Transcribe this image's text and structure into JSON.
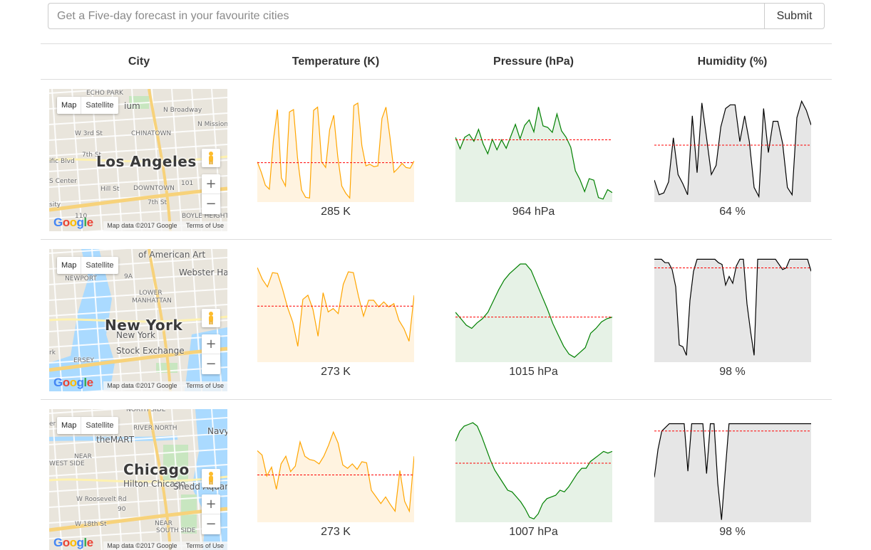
{
  "search": {
    "placeholder": "Get a Five-day forecast in your favourite cities",
    "value": ""
  },
  "submit_label": "Submit",
  "table": {
    "headers": {
      "city": "City",
      "temperature": "Temperature (K)",
      "pressure": "Pressure (hPa)",
      "humidity": "Humidity (%)"
    }
  },
  "map_controls": {
    "map_label": "Map",
    "satellite_label": "Satellite",
    "zoom_in": "+",
    "zoom_out": "−",
    "attribution": "Map data ©2017 Google",
    "terms": "Terms of Use",
    "logo_letters": [
      "G",
      "o",
      "o",
      "g",
      "l",
      "e"
    ]
  },
  "colors": {
    "temperature": {
      "line": "#ffa500",
      "fill": "#fff3e0"
    },
    "pressure": {
      "line": "#008000",
      "fill": "#e6f2e6"
    },
    "humidity": {
      "line": "#000000",
      "fill": "#e6e6e6"
    },
    "mean_line": "#ff0000"
  },
  "icons": {
    "pegman": "pegman-icon",
    "zoom_in": "zoom-in-icon",
    "zoom_out": "zoom-out-icon"
  },
  "rows": [
    {
      "city": "Los Angeles",
      "map_labels": [
        "ECHO PARK",
        "N Broadway",
        "W 3rd St",
        "CHINATOWN",
        "7th St",
        "ific Blvd",
        "S Center",
        "DOWNTOWN",
        "Hill St",
        "7th St",
        "sity",
        "BOYLE HEIGHTS",
        "ium",
        "110",
        "101",
        "N Mission"
      ],
      "temperature": {
        "summary": "285 K",
        "values": [
          283.5,
          282.2,
          280.6,
          280.1,
          286.2,
          290.0,
          281.5,
          280.5,
          289.7,
          290.0,
          284.0,
          280.0,
          279.1,
          279.0,
          289.9,
          290.3,
          283.5,
          282.8,
          287.5,
          289.3,
          284.2,
          280.5,
          279.6,
          279.0,
          290.5,
          290.8,
          285.5,
          283.0,
          283.2,
          282.9,
          283.0,
          288.9,
          290.3,
          286.5,
          282.2,
          282.7,
          283.3,
          282.8,
          282.7,
          283.6
        ],
        "mean": 283.4,
        "range": [
          278.5,
          291.5
        ]
      },
      "pressure": {
        "summary": "964 hPa",
        "values": [
          966.5,
          964.2,
          966.5,
          967.1,
          965.7,
          968.1,
          965.2,
          963.2,
          966.1,
          964.0,
          966.0,
          964.3,
          966.7,
          969.1,
          966.2,
          968.9,
          970.0,
          967.6,
          972.6,
          968.8,
          968.5,
          967.5,
          971.2,
          967.8,
          966.5,
          964.5,
          959.8,
          958.0,
          955.6,
          958.2,
          957.9,
          954.4,
          954.1,
          956.0,
          955.4
        ],
        "mean": 966.0,
        "range": [
          953.5,
          974.5
        ]
      },
      "humidity": {
        "summary": "64 %",
        "values": [
          57,
          49,
          50,
          56,
          80,
          60,
          55,
          49,
          92,
          61,
          99,
          80,
          60,
          65,
          86,
          96,
          98,
          98,
          78,
          92,
          78,
          53,
          48,
          96,
          72,
          89,
          89,
          77,
          53,
          49,
          91,
          100,
          95,
          87
        ],
        "mean": 76,
        "range": [
          45,
          102
        ]
      }
    },
    {
      "city": "New York",
      "map_labels": [
        "of American Art",
        "Webster Ha",
        "NEWPORT",
        "9A",
        "LOWER",
        "MANHATTAN",
        "ERSEY",
        "New York",
        "Stock Exchange",
        "rk"
      ],
      "temperature": {
        "summary": "273 K",
        "values": [
          276.8,
          275.4,
          274.5,
          276.2,
          276.1,
          274.2,
          272.0,
          270.3,
          267.4,
          273.0,
          273.5,
          271.8,
          268.6,
          273.8,
          271.5,
          271.9,
          271.3,
          274.8,
          276.3,
          276.2,
          273.4,
          271.0,
          272.9,
          272.9,
          272.1,
          272.7,
          272.1,
          272.5,
          270.5,
          269.5,
          268.0,
          273.5
        ],
        "mean": 272.2,
        "range": [
          265.5,
          278.0
        ]
      },
      "pressure": {
        "summary": "1015 hPa",
        "values": [
          1016.5,
          1014.5,
          1012.5,
          1011.5,
          1013.2,
          1014.5,
          1016.5,
          1020.0,
          1023.5,
          1026.5,
          1028.5,
          1030.0,
          1031.5,
          1031.5,
          1029.5,
          1025.5,
          1021.5,
          1017.5,
          1013.0,
          1009.5,
          1006.0,
          1003.5,
          1002.5,
          1004.0,
          1005.5,
          1010.0,
          1011.5,
          1013.5,
          1014.5,
          1015.0
        ],
        "mean": 1015.0,
        "range": [
          1001.0,
          1033.5
        ]
      },
      "humidity": {
        "summary": "98 %",
        "values": [
          100,
          100,
          100,
          98,
          98,
          94,
          84,
          50,
          49,
          44,
          76,
          93,
          100,
          100,
          100,
          100,
          100,
          100,
          98,
          97,
          85,
          90,
          86,
          96,
          100,
          100,
          74,
          58,
          44,
          100,
          100,
          100,
          100,
          100,
          100,
          97,
          94,
          95,
          100,
          100,
          100,
          100,
          100,
          100,
          93
        ],
        "mean": 95,
        "range": [
          40,
          101
        ]
      }
    },
    {
      "city": "Chicago",
      "map_labels": [
        "NORTH SIDE",
        "RIVER NORTH",
        "theMART",
        "Navy",
        "NEAR",
        "WEST SIDE",
        "Hilton Chicago",
        "Shedd Aquar",
        "W Roosevelt Rd",
        "W 18th St",
        "NEAR",
        "SOUTH SIDE",
        "90",
        "er"
      ],
      "temperature": {
        "summary": "273 K",
        "values": [
          274.5,
          274.1,
          272.2,
          273.0,
          271.0,
          273.3,
          274.0,
          272.6,
          273.1,
          275.3,
          274.0,
          273.7,
          273.6,
          273.3,
          274.0,
          275.0,
          276.2,
          275.2,
          273.2,
          272.9,
          273.3,
          272.8,
          273.5,
          273.4,
          270.9,
          270.3,
          269.7,
          270.3,
          269.6,
          269.0,
          272.7,
          269.9,
          269.0,
          274.0
        ],
        "mean": 272.3,
        "range": [
          268.0,
          277.5
        ]
      },
      "pressure": {
        "summary": "1007 hPa",
        "values": [
          1012.5,
          1015.5,
          1017.0,
          1017.5,
          1018.0,
          1017.0,
          1014.0,
          1010.5,
          1007.0,
          1004.0,
          1002.0,
          1000.0,
          998.0,
          997.5,
          996.0,
          994.5,
          992.5,
          990.0,
          989.5,
          991.0,
          994.0,
          995.5,
          996.0,
          996.5,
          998.0,
          997.5,
          999.0,
          1001.0,
          1003.0,
          1004.5,
          1004.5,
          1006.5,
          1007.5,
          1008.5,
          1009.5,
          1009.0,
          1009.5
        ],
        "mean": 1006.0,
        "range": [
          988.5,
          1019.5
        ]
      },
      "humidity": {
        "summary": "98 %",
        "values": [
          55,
          78,
          93,
          96,
          99,
          99,
          99,
          99,
          99,
          60,
          99,
          99,
          99,
          99,
          58,
          99,
          99,
          50,
          20,
          60,
          99,
          99,
          99,
          99,
          99,
          99,
          99,
          99,
          99,
          99,
          99,
          99,
          99,
          99,
          99,
          99,
          99,
          99,
          99,
          99,
          99,
          99,
          99
        ],
        "mean": 93,
        "range": [
          18,
          104
        ]
      }
    }
  ]
}
